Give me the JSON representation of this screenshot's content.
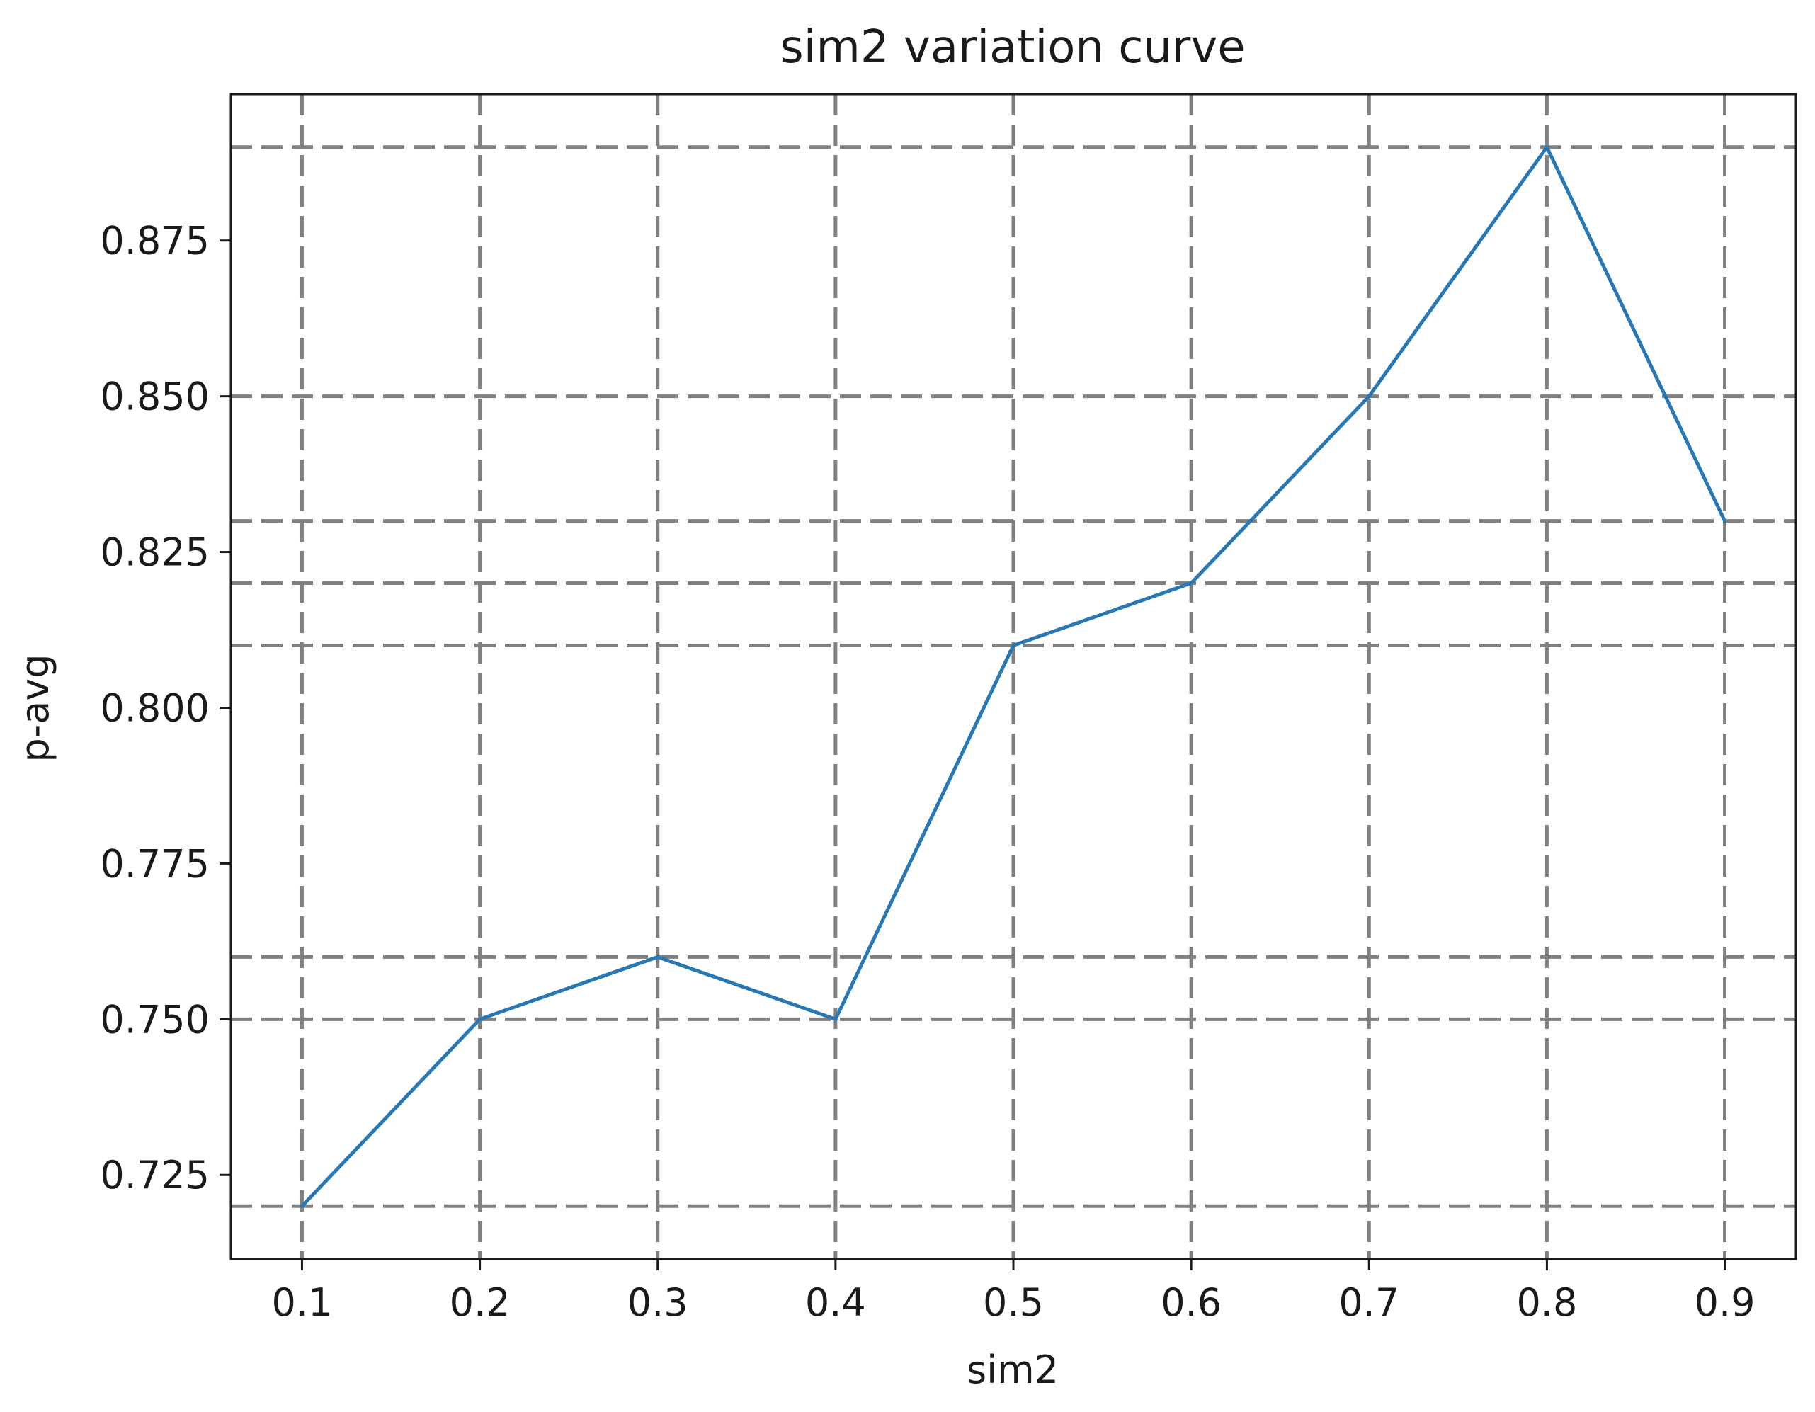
{
  "chart_data": {
    "type": "line",
    "title": "sim2 variation curve",
    "xlabel": "sim2",
    "ylabel": "p-avg",
    "x": [
      0.1,
      0.2,
      0.3,
      0.4,
      0.5,
      0.6,
      0.7,
      0.8,
      0.9
    ],
    "series": [
      {
        "values": [
          0.72,
          0.75,
          0.76,
          0.75,
          0.81,
          0.82,
          0.85,
          0.89,
          0.83
        ],
        "color": "#2878b5"
      }
    ],
    "xticks": [
      "0.1",
      "0.2",
      "0.3",
      "0.4",
      "0.5",
      "0.6",
      "0.7",
      "0.8",
      "0.9"
    ],
    "yticks": [
      "0.725",
      "0.750",
      "0.775",
      "0.800",
      "0.825",
      "0.850",
      "0.875"
    ],
    "ytick_values": [
      0.725,
      0.75,
      0.775,
      0.8,
      0.825,
      0.85,
      0.875
    ],
    "xlim": [
      0.06,
      0.94
    ],
    "ylim": [
      0.7115,
      0.8985
    ],
    "grid": true,
    "grid_style": "dashed",
    "hlines": [
      0.72,
      0.75,
      0.76,
      0.81,
      0.82,
      0.83,
      0.85,
      0.89
    ],
    "colors": {
      "grid": "#808080",
      "axes": "#1a1a1a"
    }
  }
}
